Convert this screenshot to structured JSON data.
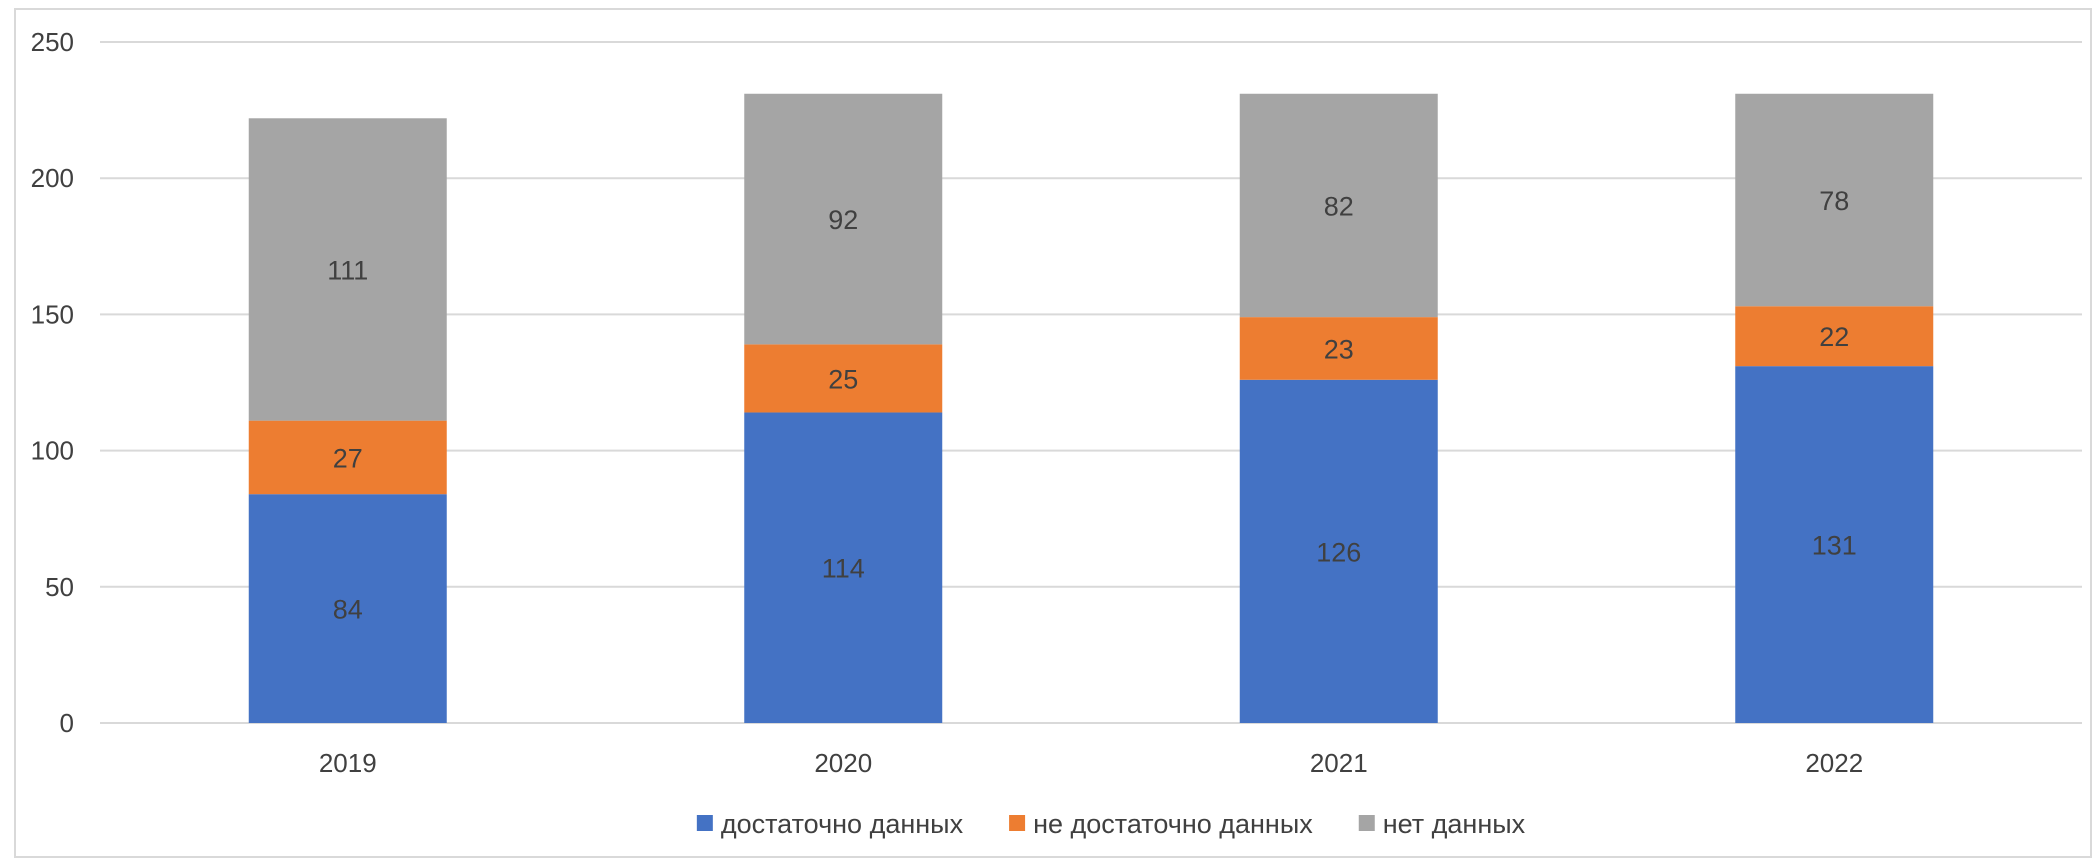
{
  "chart_data": {
    "type": "bar",
    "stacked": true,
    "categories": [
      "2019",
      "2020",
      "2021",
      "2022"
    ],
    "series": [
      {
        "name": "достаточно данных",
        "values": [
          84,
          114,
          126,
          131
        ],
        "color": "#4472c4"
      },
      {
        "name": "не достаточно данных",
        "values": [
          27,
          25,
          23,
          22
        ],
        "color": "#ed7d31"
      },
      {
        "name": "нет данных",
        "values": [
          111,
          92,
          82,
          78
        ],
        "color": "#a5a5a5"
      }
    ],
    "yticks": [
      "0",
      "50",
      "100",
      "150",
      "200",
      "250"
    ],
    "ylim": [
      0,
      250
    ],
    "grid": true,
    "legend_position": "bottom",
    "gridline_color": "#d9d9d9",
    "axis_label_color": "#404040"
  }
}
